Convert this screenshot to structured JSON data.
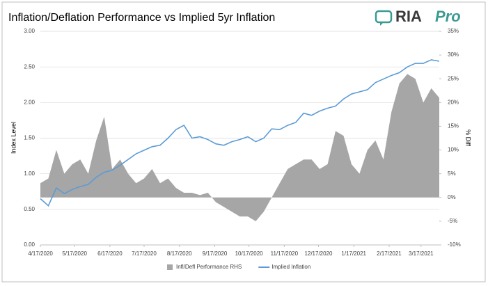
{
  "header": {
    "logo": "RIA",
    "logo_suffix": "Pro"
  },
  "chart_data": {
    "type": "area-line",
    "title": "Inflation/Deflation Performance vs Implied 5yr Inflation",
    "y_label": "Index Level",
    "y2_label": "% Diff",
    "x": [
      "4/17/2020",
      "4/24/2020",
      "5/1/2020",
      "5/8/2020",
      "5/15/2020",
      "5/22/2020",
      "5/29/2020",
      "6/5/2020",
      "6/12/2020",
      "6/19/2020",
      "6/26/2020",
      "7/3/2020",
      "7/10/2020",
      "7/17/2020",
      "7/24/2020",
      "7/31/2020",
      "8/7/2020",
      "8/14/2020",
      "8/21/2020",
      "8/28/2020",
      "9/4/2020",
      "9/11/2020",
      "9/18/2020",
      "9/25/2020",
      "10/2/2020",
      "10/9/2020",
      "10/16/2020",
      "10/23/2020",
      "10/30/2020",
      "11/6/2020",
      "11/13/2020",
      "11/20/2020",
      "11/27/2020",
      "12/4/2020",
      "12/11/2020",
      "12/18/2020",
      "12/25/2020",
      "1/1/2021",
      "1/8/2021",
      "1/15/2021",
      "1/22/2021",
      "1/29/2021",
      "2/5/2021",
      "2/12/2021",
      "2/19/2021",
      "2/26/2021",
      "3/5/2021",
      "3/12/2021",
      "3/19/2021",
      "3/26/2021",
      "4/2/2021"
    ],
    "series": [
      {
        "name": "Infl/Defl Performance RHS",
        "color": "#a6a6a6",
        "axis": "y2",
        "kind": "area",
        "values": [
          3,
          4,
          10,
          5,
          7,
          8,
          5,
          12,
          17,
          6,
          8,
          5,
          3,
          4,
          6,
          3,
          4,
          2,
          1,
          1,
          0.5,
          1,
          -1,
          -2,
          -3,
          -4,
          -4,
          -5,
          -3,
          0,
          3,
          6,
          7,
          8,
          8,
          6,
          7,
          14,
          13,
          7,
          5,
          10,
          12,
          8,
          18,
          24,
          26,
          25,
          20,
          23,
          21
        ]
      },
      {
        "name": "Implied Inflation",
        "color": "#5b9bd5",
        "axis": "y",
        "kind": "line",
        "values": [
          0.65,
          0.55,
          0.8,
          0.72,
          0.78,
          0.82,
          0.85,
          0.95,
          1.02,
          1.05,
          1.12,
          1.2,
          1.28,
          1.33,
          1.38,
          1.4,
          1.5,
          1.62,
          1.68,
          1.5,
          1.52,
          1.48,
          1.42,
          1.4,
          1.45,
          1.48,
          1.52,
          1.45,
          1.5,
          1.63,
          1.62,
          1.68,
          1.72,
          1.85,
          1.82,
          1.88,
          1.92,
          1.95,
          2.05,
          2.12,
          2.15,
          2.18,
          2.28,
          2.33,
          2.38,
          2.42,
          2.5,
          2.55,
          2.55,
          2.6,
          2.58
        ]
      }
    ],
    "xlim": [
      "4/17/2020",
      "4/2/2021"
    ],
    "xticks": [
      "4/17/2020",
      "5/17/2020",
      "6/17/2020",
      "7/17/2020",
      "8/17/2020",
      "9/17/2020",
      "10/17/2020",
      "11/17/2020",
      "12/17/2020",
      "1/17/2021",
      "2/17/2021",
      "3/17/2021"
    ],
    "ylim": [
      0,
      3
    ],
    "yticks": [
      {
        "value": 0,
        "label": "0.00"
      },
      {
        "value": 0.5,
        "label": "0.50"
      },
      {
        "value": 1,
        "label": "1.00"
      },
      {
        "value": 1.5,
        "label": "1.50"
      },
      {
        "value": 2,
        "label": "2.00"
      },
      {
        "value": 2.5,
        "label": "2.50"
      },
      {
        "value": 3,
        "label": "3.00"
      }
    ],
    "y2lim": [
      -10,
      35
    ],
    "y2ticks": [
      {
        "value": -10,
        "label": "-10%"
      },
      {
        "value": -5,
        "label": "-5%"
      },
      {
        "value": 0,
        "label": "0%"
      },
      {
        "value": 5,
        "label": "5%"
      },
      {
        "value": 10,
        "label": "10%"
      },
      {
        "value": 15,
        "label": "15%"
      },
      {
        "value": 20,
        "label": "20%"
      },
      {
        "value": 25,
        "label": "25%"
      },
      {
        "value": 30,
        "label": "30%"
      },
      {
        "value": 35,
        "label": "35%"
      }
    ],
    "legend": "bottom",
    "grid": true
  }
}
